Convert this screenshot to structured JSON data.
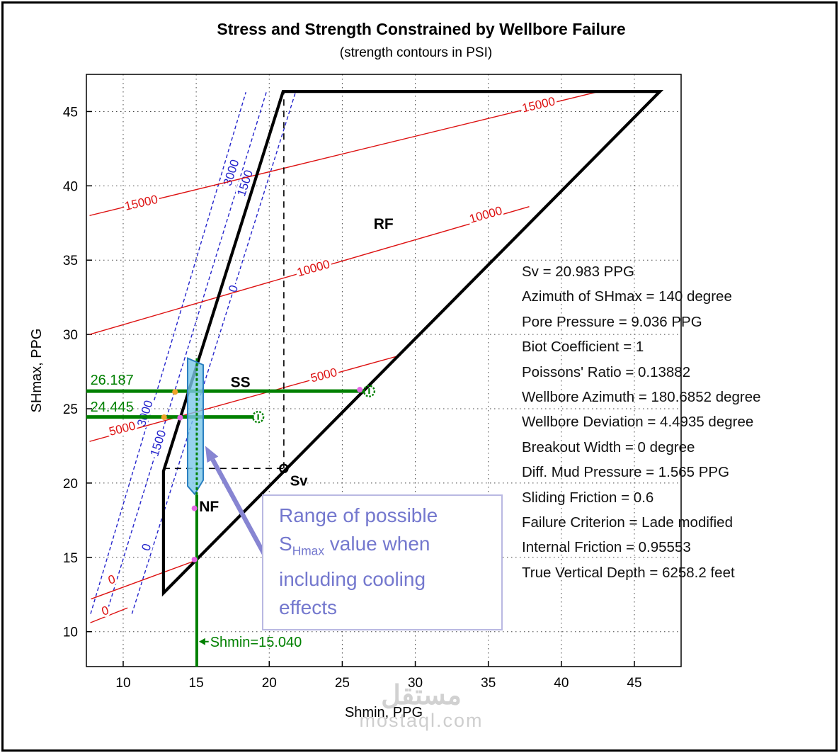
{
  "chart_data": {
    "type": "line",
    "title": "Stress and Strength Constrained by Wellbore Failure",
    "subtitle": "(strength contours in PSI)",
    "xlabel": "Shmin, PPG",
    "ylabel": "SHmax, PPG",
    "xlim": [
      7.48,
      48.2
    ],
    "ylim": [
      7.65,
      47.5
    ],
    "xticks": [
      10,
      15,
      20,
      25,
      30,
      35,
      40,
      45
    ],
    "yticks": [
      10,
      15,
      20,
      25,
      30,
      35,
      40,
      45
    ],
    "grid": "dotted",
    "stress_polygon": {
      "color": "#000000",
      "vertices": [
        [
          12.76,
          12.6
        ],
        [
          12.76,
          20.8
        ],
        [
          20.95,
          46.35
        ],
        [
          46.75,
          46.35
        ]
      ]
    },
    "sv_point": {
      "x": 21,
      "y": 20.983,
      "label": "Sv"
    },
    "dashed_guides": [
      {
        "from": [
          21,
          20.983
        ],
        "to": [
          21,
          46.35
        ]
      },
      {
        "from": [
          12.76,
          20.983
        ],
        "to": [
          21,
          20.983
        ]
      }
    ],
    "regime_labels": [
      {
        "text": "RF",
        "x": 27.15,
        "y": 37.1
      },
      {
        "text": "SS",
        "x": 17.35,
        "y": 26.45
      },
      {
        "text": "NF",
        "x": 15.2,
        "y": 18.1
      }
    ],
    "red_contours": {
      "color": "#dd1111",
      "unit": "PSI",
      "lines": [
        {
          "level": 15000,
          "points": [
            [
              7.7,
              38.0
            ],
            [
              42.8,
              46.4
            ]
          ],
          "labels": [
            {
              "text": "15000",
              "x": 11.3,
              "y": 38.6,
              "rot": -13
            },
            {
              "text": "15000",
              "x": 38.5,
              "y": 45.2,
              "rot": -13
            }
          ]
        },
        {
          "level": 10000,
          "points": [
            [
              7.7,
              30.0
            ],
            [
              37.8,
              38.6
            ]
          ],
          "labels": [
            {
              "text": "10000",
              "x": 23.1,
              "y": 34.2,
              "rot": -16
            },
            {
              "text": "10000",
              "x": 34.9,
              "y": 37.8,
              "rot": -16
            }
          ]
        },
        {
          "level": 5000,
          "points": [
            [
              7.7,
              22.8
            ],
            [
              29.0,
              28.6
            ]
          ],
          "labels": [
            {
              "text": "5000",
              "x": 10.0,
              "y": 23.4,
              "rot": -14
            },
            {
              "text": "5000",
              "x": 23.8,
              "y": 27.0,
              "rot": -14
            }
          ]
        },
        {
          "level": 0,
          "points": [
            [
              7.8,
              12.2
            ],
            [
              15.0,
              14.8
            ]
          ],
          "labels": [
            {
              "text": "0",
              "x": 9.3,
              "y": 13.25,
              "rot": -18
            }
          ]
        },
        {
          "level": 0,
          "points": [
            [
              7.75,
              10.6
            ],
            [
              10.3,
              11.6
            ]
          ],
          "labels": [
            {
              "text": "0",
              "x": 8.85,
              "y": 11.15,
              "rot": -18
            }
          ]
        }
      ]
    },
    "blue_contours": {
      "color": "#2424cc",
      "dashed": true,
      "lines": [
        {
          "level": 3000,
          "points": [
            [
              7.77,
              11.2
            ],
            [
              18.4,
              46.3
            ]
          ],
          "labels": [
            {
              "text": "3000",
              "x": 11.75,
              "y": 24.6,
              "rot": -72
            },
            {
              "text": "3000",
              "x": 17.65,
              "y": 40.8,
              "rot": -72
            }
          ]
        },
        {
          "level": 1500,
          "points": [
            [
              8.85,
              11.2
            ],
            [
              19.8,
              46.3
            ]
          ],
          "labels": [
            {
              "text": "1500",
              "x": 12.65,
              "y": 22.6,
              "rot": -72
            },
            {
              "text": "1500",
              "x": 18.6,
              "y": 40.1,
              "rot": -72
            }
          ]
        },
        {
          "level": 0,
          "points": [
            [
              10.6,
              11.2
            ],
            [
              21.8,
              46.3
            ]
          ],
          "labels": [
            {
              "text": "0",
              "x": 11.85,
              "y": 15.6,
              "rot": -72
            },
            {
              "text": "0",
              "x": 17.8,
              "y": 33.0,
              "rot": -72
            }
          ]
        }
      ]
    },
    "shmin_line": {
      "x": 15.04,
      "y_from": 7.65,
      "y_to": 28.4,
      "color": "#008000",
      "label": "Shmin=15.040",
      "label_x": 15.95,
      "label_y": 8.98,
      "arrow_y": 9.33
    },
    "shmax_lines": [
      {
        "y": 26.187,
        "x_from": 7.48,
        "x_to": 26.55,
        "label": "26.187",
        "label_x": 7.75,
        "label_y": 26.62,
        "magenta_dot_x": 26.2
      },
      {
        "y": 24.445,
        "x_from": 7.48,
        "x_to": 18.95,
        "label": "24.445",
        "label_x": 7.75,
        "label_y": 24.82
      }
    ],
    "cooling_region": {
      "fill": "rgba(124,199,232,0.8)",
      "stroke": "#2a7fc0",
      "polygon": [
        [
          14.41,
          28.4
        ],
        [
          15.48,
          27.95
        ],
        [
          15.48,
          20.2
        ],
        [
          14.9,
          19.25
        ],
        [
          14.41,
          19.8
        ]
      ]
    },
    "point_markers": {
      "magenta": {
        "color": "#e466e4",
        "points": [
          [
            14.88,
            14.85
          ],
          [
            14.88,
            18.3
          ],
          [
            13.9,
            24.4
          ],
          [
            26.2,
            26.28
          ]
        ]
      },
      "orange": {
        "color": "#eea329",
        "points": [
          [
            12.8,
            24.43
          ],
          [
            13.55,
            26.13
          ]
        ]
      }
    },
    "annotation_arrow": {
      "from": [
        22.1,
        10.8
      ],
      "to": [
        15.62,
        22.5
      ],
      "color": "#8785d2"
    }
  },
  "annotation": {
    "line1": "Range of possible",
    "line2_pre": "S",
    "line2_sub": "Hmax",
    "line2_post": " value when",
    "line3": "including cooling",
    "line4": "effects"
  },
  "parameters": [
    "Sv = 20.983 PPG",
    "Azimuth of SHmax = 140 degree",
    "Pore Pressure = 9.036 PPG",
    "Biot Coefficient = 1",
    "Poissons' Ratio = 0.13882",
    "Wellbore Azimuth = 180.6852 degree",
    "Wellbore Deviation = 4.4935 degree",
    "Breakout Width = 0 degree",
    "Diff. Mud Pressure = 1.565 PPG",
    "Sliding Friction = 0.6",
    "Failure Criterion = Lade modified",
    "Internal Friction = 0.95553",
    "True Vertical Depth = 6258.2 feet"
  ],
  "watermark": {
    "logo": "مستقل",
    "domain": "mostaql.com"
  }
}
